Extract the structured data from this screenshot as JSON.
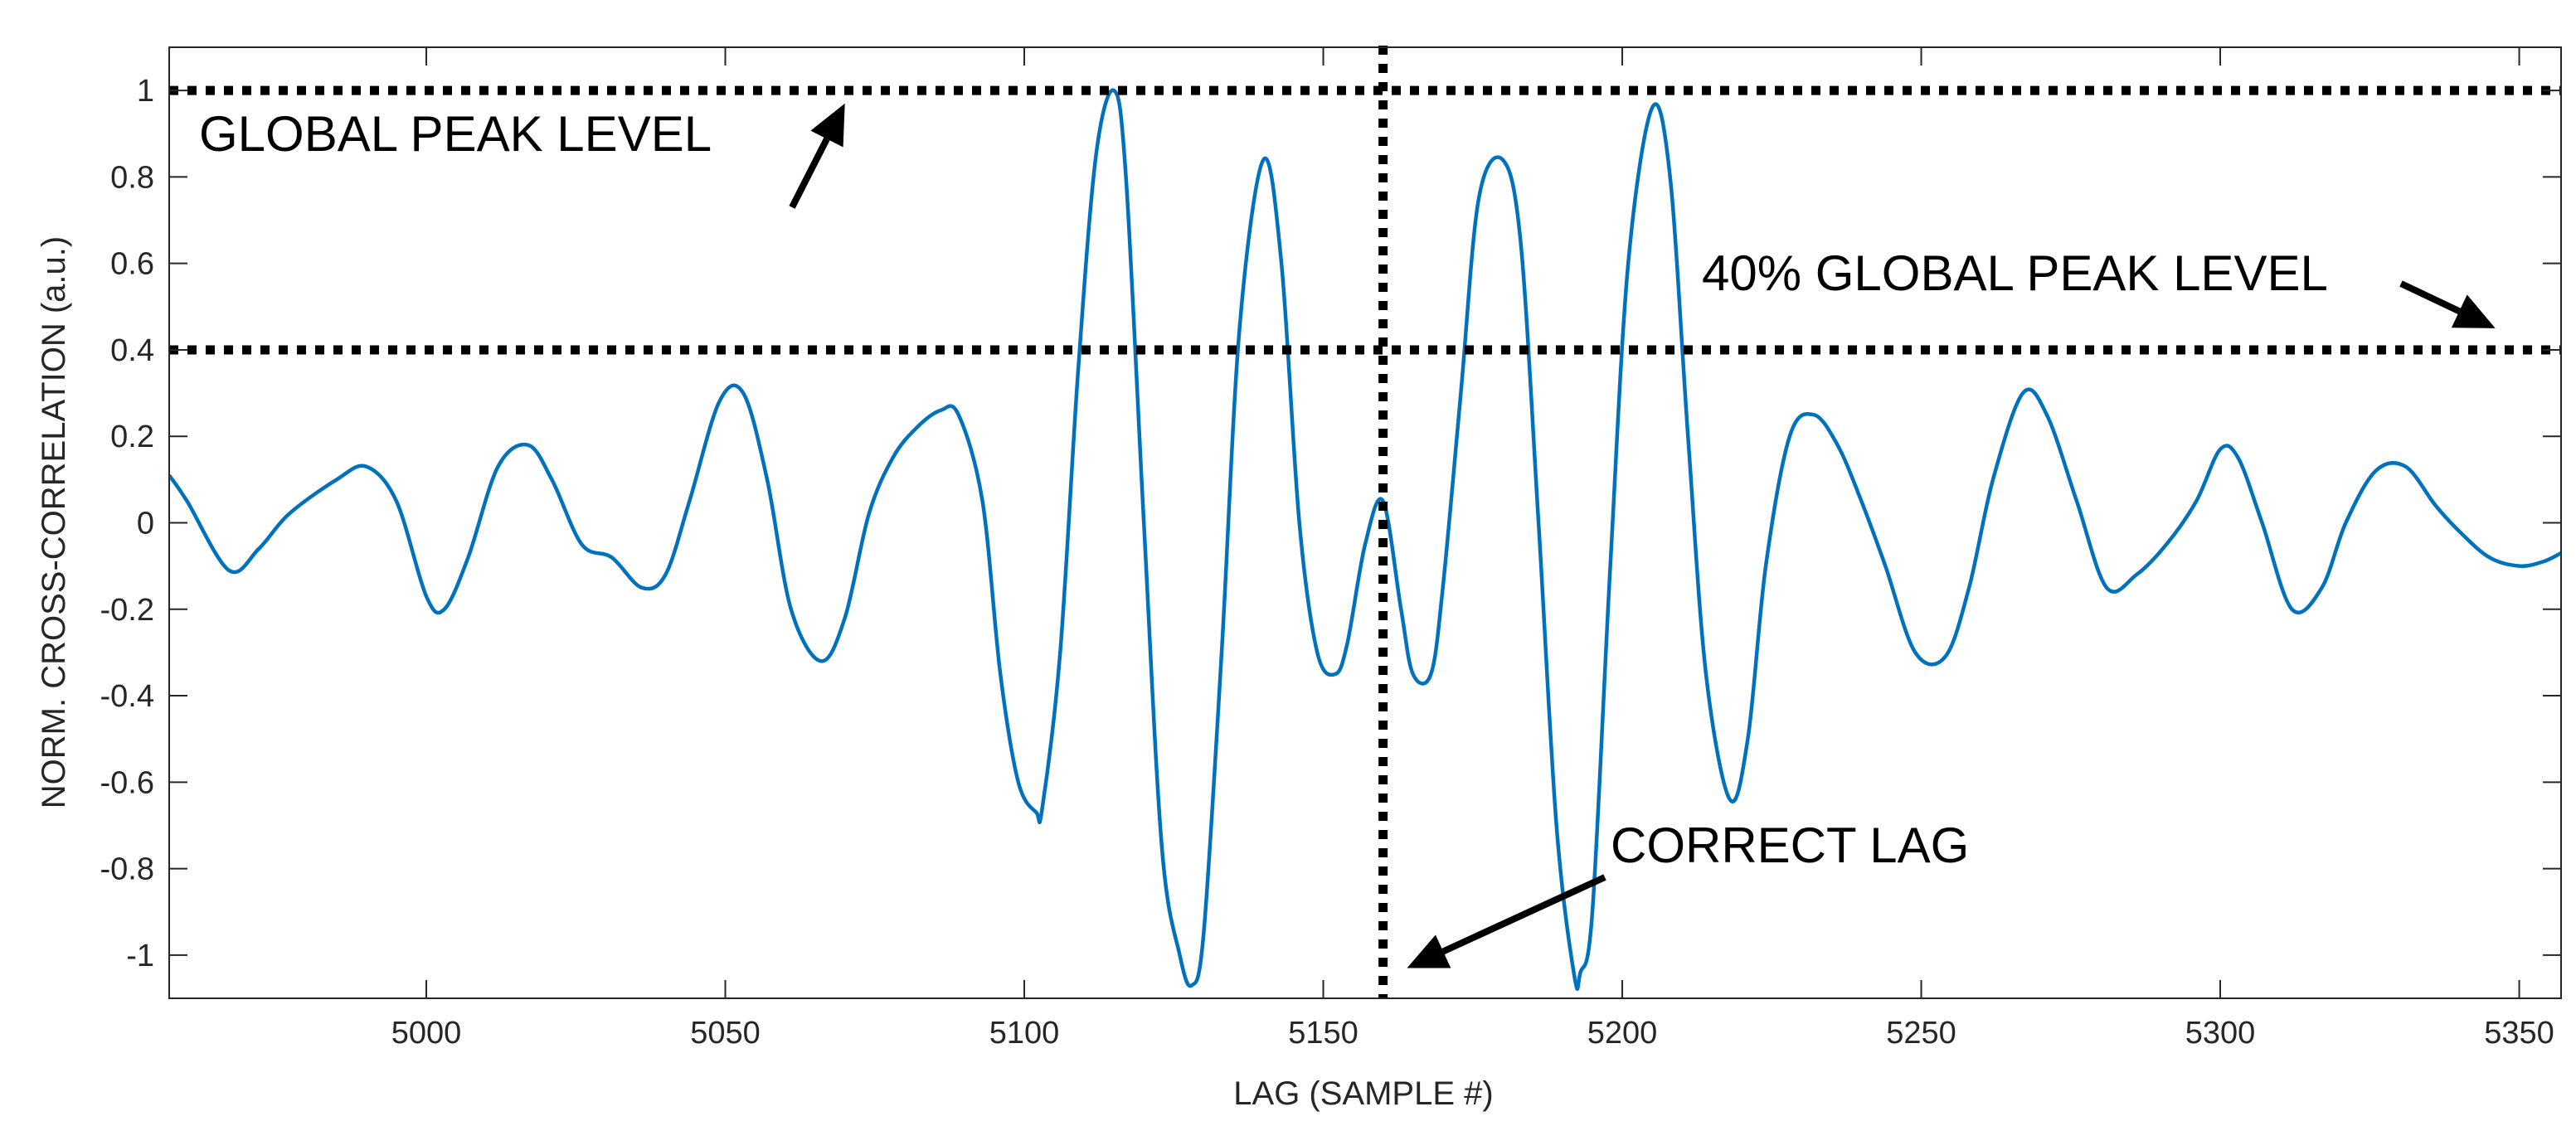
{
  "chart_data": {
    "type": "line",
    "xlabel": "LAG (SAMPLE #)",
    "ylabel": "NORM. CROSS-CORRELATION (a.u.)",
    "xlim": [
      4957,
      5357
    ],
    "ylim": [
      -1.1,
      1.1
    ],
    "xticks": [
      "5000",
      "5050",
      "5100",
      "5150",
      "5200",
      "5250",
      "5300",
      "5350"
    ],
    "xtick_values": [
      5000,
      5050,
      5100,
      5150,
      5200,
      5250,
      5300,
      5350
    ],
    "yticks": [
      "1",
      "0.8",
      "0.6",
      "0.4",
      "0.2",
      "0",
      "-0.2",
      "-0.4",
      "-0.6",
      "-0.8",
      "-1"
    ],
    "ytick_values": [
      1,
      0.8,
      0.6,
      0.4,
      0.2,
      0,
      -0.2,
      -0.4,
      -0.6,
      -0.8,
      -1
    ],
    "grid": false,
    "series": [
      {
        "color": "#0072BD",
        "x": [
          4957,
          4960,
          4967,
          4972,
          4977,
          4985,
          4990,
          4995,
          5000,
          5003,
          5007,
          5012,
          5017,
          5021,
          5026,
          5031,
          5036,
          5040,
          5044,
          5049,
          5053,
          5057,
          5061,
          5066,
          5070,
          5074,
          5078,
          5082,
          5086,
          5089,
          5093,
          5096,
          5099,
          5102,
          5103,
          5106,
          5109,
          5112,
          5115,
          5117,
          5120,
          5123,
          5126,
          5128,
          5130,
          5133,
          5136,
          5140,
          5143,
          5146,
          5149,
          5152,
          5154,
          5157,
          5160,
          5163,
          5165,
          5168,
          5170,
          5173,
          5176,
          5180,
          5183,
          5186,
          5189,
          5192,
          5193,
          5195,
          5198,
          5201,
          5205,
          5208,
          5211,
          5214,
          5218,
          5221,
          5224,
          5228,
          5232,
          5236,
          5240,
          5244,
          5249,
          5254,
          5258,
          5262,
          5267,
          5271,
          5276,
          5281,
          5286,
          5291,
          5296,
          5300,
          5303,
          5307,
          5312,
          5317,
          5321,
          5326,
          5331,
          5336,
          5340,
          5345,
          5350,
          5354,
          5357
        ],
        "y": [
          0.11,
          0.05,
          -0.11,
          -0.06,
          0.02,
          0.1,
          0.13,
          0.05,
          -0.17,
          -0.2,
          -0.08,
          0.13,
          0.18,
          0.1,
          -0.05,
          -0.08,
          -0.15,
          -0.12,
          0.05,
          0.28,
          0.3,
          0.1,
          -0.2,
          -0.32,
          -0.22,
          0.02,
          0.15,
          0.22,
          0.26,
          0.25,
          0.05,
          -0.35,
          -0.6,
          -0.67,
          -0.66,
          -0.3,
          0.35,
          0.85,
          1.0,
          0.8,
          0.0,
          -0.75,
          -1.0,
          -1.07,
          -0.95,
          -0.3,
          0.45,
          0.84,
          0.6,
          0.0,
          -0.3,
          -0.35,
          -0.28,
          -0.05,
          0.05,
          -0.2,
          -0.35,
          -0.35,
          -0.15,
          0.3,
          0.75,
          0.84,
          0.65,
          0.0,
          -0.7,
          -1.05,
          -1.04,
          -0.9,
          -0.1,
          0.6,
          0.96,
          0.8,
          0.2,
          -0.35,
          -0.64,
          -0.5,
          -0.1,
          0.2,
          0.25,
          0.18,
          0.05,
          -0.1,
          -0.3,
          -0.31,
          -0.15,
          0.1,
          0.3,
          0.25,
          0.05,
          -0.15,
          -0.12,
          -0.05,
          0.05,
          0.17,
          0.15,
          0.0,
          -0.2,
          -0.15,
          0.0,
          0.12,
          0.13,
          0.04,
          -0.02,
          -0.08,
          -0.1,
          -0.09,
          -0.07
        ]
      }
    ],
    "reference_lines": [
      {
        "axis": "y",
        "value": 1,
        "style": "dotted",
        "color": "#000000"
      },
      {
        "axis": "y",
        "value": 0.4,
        "style": "dotted",
        "color": "#000000"
      },
      {
        "axis": "x",
        "value": 5160,
        "style": "dotted",
        "color": "#000000"
      }
    ],
    "annotations": [
      {
        "text": "GLOBAL PEAK LEVEL",
        "arrow_to": [
          5070,
          0.97
        ]
      },
      {
        "text": "40% GLOBAL PEAK LEVEL",
        "arrow_to": [
          5346,
          0.45
        ]
      },
      {
        "text": "CORRECT LAG",
        "arrow_to": [
          5164,
          -1.03
        ]
      }
    ]
  }
}
